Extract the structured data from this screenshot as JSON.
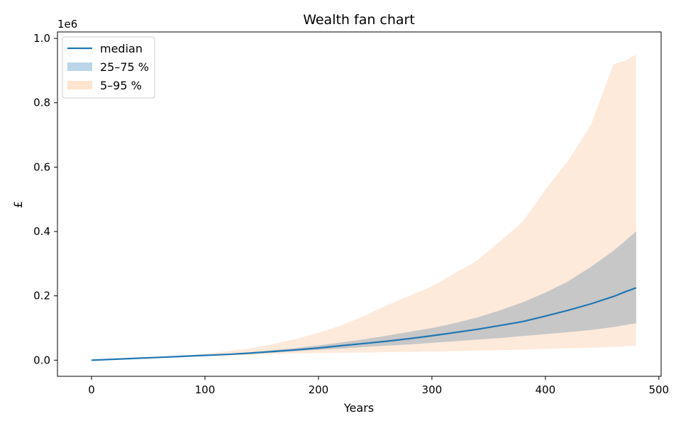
{
  "chart_data": {
    "type": "area",
    "title": "Wealth fan chart",
    "xlabel": "Years",
    "ylabel": "£",
    "y_offset_label": "1e6",
    "xlim": [
      -30,
      502
    ],
    "ylim": [
      -0.05,
      1.02
    ],
    "y_scale_factor": 1000000,
    "x_ticks": [
      0,
      100,
      200,
      300,
      400,
      500
    ],
    "x_tick_labels": [
      "0",
      "100",
      "200",
      "300",
      "400",
      "500"
    ],
    "y_ticks": [
      0.0,
      0.2,
      0.4,
      0.6,
      0.8,
      1.0
    ],
    "y_tick_labels": [
      "0.0",
      "0.2",
      "0.4",
      "0.6",
      "0.8",
      "1.0"
    ],
    "grid": false,
    "legend_position": "upper-left",
    "x": [
      0,
      20,
      40,
      60,
      80,
      100,
      120,
      140,
      160,
      180,
      200,
      220,
      240,
      260,
      280,
      300,
      320,
      340,
      360,
      380,
      400,
      420,
      440,
      460,
      470,
      480
    ],
    "series": [
      {
        "name": "median",
        "kind": "line",
        "color": "#1f77b4",
        "values": [
          0.0,
          0.003,
          0.006,
          0.009,
          0.012,
          0.015,
          0.018,
          0.022,
          0.027,
          0.032,
          0.038,
          0.045,
          0.052,
          0.059,
          0.067,
          0.076,
          0.086,
          0.096,
          0.108,
          0.12,
          0.137,
          0.155,
          0.175,
          0.198,
          0.212,
          0.225
        ]
      },
      {
        "name": "25–75 %",
        "kind": "band",
        "color": "#1f77b4",
        "overlap_color": "#c7c7c7",
        "lower": [
          0.0,
          0.003,
          0.006,
          0.009,
          0.012,
          0.014,
          0.017,
          0.02,
          0.024,
          0.028,
          0.032,
          0.036,
          0.041,
          0.045,
          0.049,
          0.054,
          0.059,
          0.064,
          0.069,
          0.075,
          0.081,
          0.087,
          0.094,
          0.103,
          0.109,
          0.115
        ],
        "upper": [
          0.0,
          0.003,
          0.006,
          0.009,
          0.012,
          0.016,
          0.02,
          0.025,
          0.031,
          0.038,
          0.046,
          0.055,
          0.065,
          0.076,
          0.088,
          0.1,
          0.115,
          0.133,
          0.155,
          0.18,
          0.21,
          0.245,
          0.29,
          0.34,
          0.37,
          0.4
        ]
      },
      {
        "name": "5–95 %",
        "kind": "band",
        "color": "#ff7f0e",
        "fill_color": "#fdeadb",
        "lower": [
          0.0,
          0.003,
          0.005,
          0.008,
          0.011,
          0.013,
          0.015,
          0.017,
          0.019,
          0.021,
          0.022,
          0.023,
          0.024,
          0.025,
          0.026,
          0.027,
          0.028,
          0.03,
          0.031,
          0.033,
          0.035,
          0.037,
          0.039,
          0.041,
          0.043,
          0.045
        ],
        "upper": [
          0.0,
          0.003,
          0.006,
          0.01,
          0.014,
          0.02,
          0.028,
          0.037,
          0.05,
          0.066,
          0.085,
          0.108,
          0.137,
          0.17,
          0.2,
          0.23,
          0.27,
          0.31,
          0.37,
          0.43,
          0.53,
          0.62,
          0.73,
          0.92,
          0.93,
          0.95
        ]
      }
    ]
  }
}
